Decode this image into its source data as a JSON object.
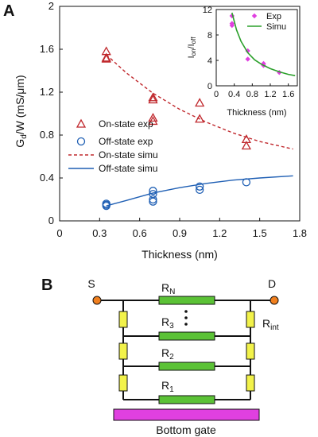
{
  "panel_a": {
    "letter": "A",
    "ylabel_main": "G",
    "ylabel_sub": "d",
    "ylabel_rest": "/W (mS/μm)",
    "xlabel": "Thickness (nm)"
  },
  "panel_b": {
    "letter": "B",
    "source": "S",
    "drain": "D",
    "rn": "R",
    "rn_sub": "N",
    "r3": "R",
    "r3_sub": "3",
    "r2": "R",
    "r2_sub": "2",
    "r1": "R",
    "r1_sub": "1",
    "rint": "R",
    "rint_sub": "int",
    "gate": "Bottom gate",
    "colors": {
      "channel_resistor": "#5bc236",
      "contact_resistor": "#f2f24a",
      "gate": "#e040e0",
      "terminal": "#f07f1e"
    }
  },
  "chart_data": [
    {
      "type": "scatter",
      "title": "",
      "xlabel": "Thickness (nm)",
      "ylabel": "Gd/W (mS/μm)",
      "xlim": [
        0,
        1.8
      ],
      "ylim": [
        0,
        2
      ],
      "xticks": [
        "0",
        "0.3",
        "0.6",
        "0.9",
        "1.2",
        "1.5",
        "1.8"
      ],
      "yticks": [
        "0",
        "0.4",
        "0.8",
        "1.2",
        "1.6",
        "2"
      ],
      "grid": false,
      "legend_position": "center-left",
      "series": [
        {
          "name": "On-state exp",
          "marker": "triangle-open",
          "color": "#c0282d",
          "points": [
            [
              0.35,
              1.58
            ],
            [
              0.35,
              1.52
            ],
            [
              0.35,
              1.51
            ],
            [
              0.7,
              1.15
            ],
            [
              0.7,
              1.13
            ],
            [
              0.7,
              0.96
            ],
            [
              0.7,
              0.93
            ],
            [
              1.05,
              1.1
            ],
            [
              1.05,
              0.95
            ],
            [
              1.4,
              0.76
            ],
            [
              1.4,
              0.7
            ]
          ]
        },
        {
          "name": "Off-state exp",
          "marker": "circle-open",
          "color": "#1f5fb4",
          "points": [
            [
              0.35,
              0.16
            ],
            [
              0.35,
              0.15
            ],
            [
              0.35,
              0.14
            ],
            [
              0.7,
              0.28
            ],
            [
              0.7,
              0.25
            ],
            [
              0.7,
              0.2
            ],
            [
              0.7,
              0.18
            ],
            [
              1.05,
              0.32
            ],
            [
              1.05,
              0.29
            ],
            [
              1.4,
              0.36
            ]
          ]
        },
        {
          "name": "On-state simu",
          "line": "dashed",
          "color": "#c0282d",
          "x": [
            0.35,
            0.5,
            0.7,
            0.9,
            1.1,
            1.3,
            1.5,
            1.75
          ],
          "y": [
            1.55,
            1.38,
            1.19,
            1.04,
            0.92,
            0.82,
            0.74,
            0.67
          ]
        },
        {
          "name": "Off-state simu",
          "line": "solid",
          "color": "#1f5fb4",
          "x": [
            0.35,
            0.5,
            0.7,
            0.9,
            1.1,
            1.3,
            1.5,
            1.75
          ],
          "y": [
            0.14,
            0.19,
            0.26,
            0.31,
            0.35,
            0.38,
            0.4,
            0.42
          ]
        }
      ]
    },
    {
      "type": "scatter",
      "title": "",
      "xlabel": "Thickness (nm)",
      "ylabel": "Ion/Ioff",
      "xlim": [
        0,
        1.8
      ],
      "ylim": [
        0,
        12
      ],
      "xticks": [
        "0",
        "0.4",
        "0.8",
        "1.2",
        "1.6"
      ],
      "yticks": [
        "0",
        "4",
        "8",
        "12"
      ],
      "legend_position": "top-right",
      "series": [
        {
          "name": "Exp",
          "marker": "diamond",
          "color": "#e040e0",
          "points": [
            [
              0.35,
              11
            ],
            [
              0.35,
              9.8
            ],
            [
              0.35,
              9.5
            ],
            [
              0.7,
              5.5
            ],
            [
              0.7,
              4.2
            ],
            [
              1.05,
              3.5
            ],
            [
              1.05,
              3.2
            ],
            [
              1.4,
              2.1
            ]
          ]
        },
        {
          "name": "Simu",
          "line": "solid",
          "color": "#2ca02c",
          "x": [
            0.35,
            0.45,
            0.55,
            0.7,
            0.85,
            1.0,
            1.2,
            1.4,
            1.6,
            1.75
          ],
          "y": [
            11.5,
            8.8,
            7.0,
            5.2,
            4.1,
            3.4,
            2.7,
            2.2,
            1.8,
            1.6
          ]
        }
      ]
    }
  ]
}
